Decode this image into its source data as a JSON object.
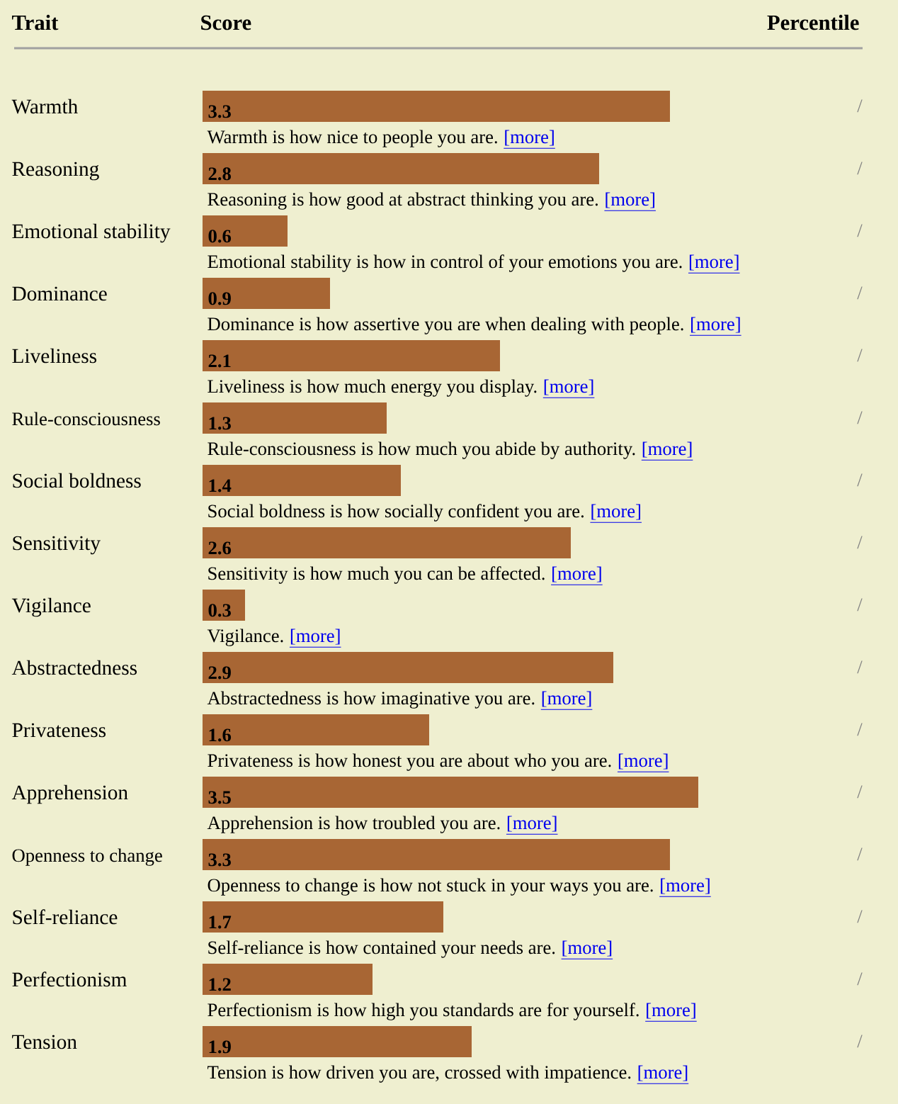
{
  "chart_data": {
    "type": "bar",
    "orientation": "horizontal",
    "xlabel": "Score",
    "ylabel": "Trait",
    "categories": [
      "Warmth",
      "Reasoning",
      "Emotional stability",
      "Dominance",
      "Liveliness",
      "Rule-consciousness",
      "Social boldness",
      "Sensitivity",
      "Vigilance",
      "Abstractedness",
      "Privateness",
      "Apprehension",
      "Openness to change",
      "Self-reliance",
      "Perfectionism",
      "Tension"
    ],
    "values": [
      3.3,
      2.8,
      0.6,
      0.9,
      2.1,
      1.3,
      1.4,
      2.6,
      0.3,
      2.9,
      1.6,
      3.5,
      3.3,
      1.7,
      1.2,
      1.9
    ],
    "color": "#a86634",
    "data_labels": true,
    "tick_labels": "y",
    "annotations": [
      "Percentile",
      "Warmth is how nice to people you are.",
      "[more]",
      "/",
      "Reasoning is how good at abstract thinking you are.",
      "[more]",
      "/",
      "Emotional stability is how in control of your emotions you are.",
      "[more]",
      "/",
      "Dominance is how assertive you are when dealing with people.",
      "[more]",
      "/",
      "Liveliness is how much energy you display.",
      "[more]",
      "/",
      "Rule-consciousness is how much you abide by authority.",
      "[more]",
      "/",
      "Social boldness is how socially confident you are.",
      "[more]",
      "/",
      "Sensitivity is how much you can be affected.",
      "[more]",
      "/",
      "Vigilance.",
      "[more]",
      "/",
      "Abstractedness is how imaginative you are.",
      "[more]",
      "/",
      "Privateness is how honest you are about who you are.",
      "[more]",
      "/",
      "Apprehension is how troubled you are.",
      "[more]",
      "/",
      "Openness to change is how not stuck in your ways you are.",
      "[more]",
      "/",
      "Self-reliance is how contained your needs are.",
      "[more]",
      "/",
      "Perfectionism is how high you standards are for yourself.",
      "[more]",
      "/",
      "Tension is how driven you are, crossed with impatience.",
      "[more]",
      "/"
    ]
  }
}
